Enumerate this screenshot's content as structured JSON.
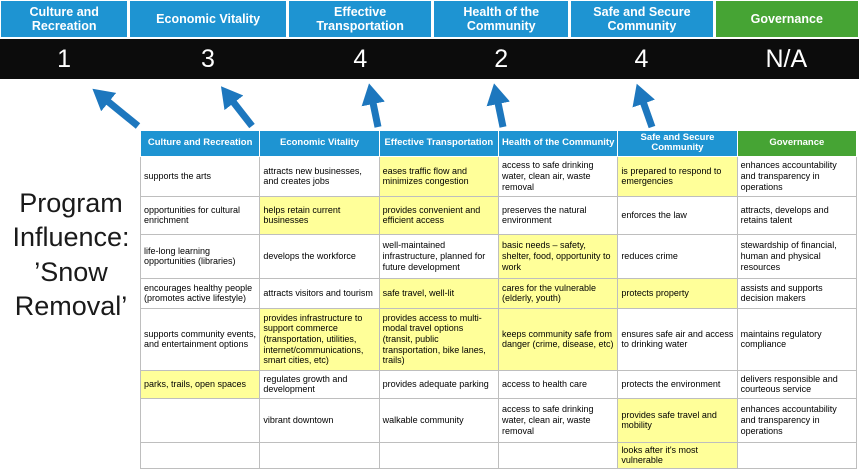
{
  "slide": {
    "title": "Program Influence: ’Snow Removal’"
  },
  "scoreboard": {
    "columns": [
      {
        "label": "Culture and Recreation",
        "score": "1",
        "theme": "blue"
      },
      {
        "label": "Economic Vitality",
        "score": "3",
        "theme": "blue"
      },
      {
        "label": "Effective Transportation",
        "score": "4",
        "theme": "blue"
      },
      {
        "label": "Health of the Community",
        "score": "2",
        "theme": "blue"
      },
      {
        "label": "Safe and Secure Community",
        "score": "4",
        "theme": "blue"
      },
      {
        "label": "Governance",
        "score": "N/A",
        "theme": "green"
      }
    ]
  },
  "table": {
    "headers": [
      {
        "label": "Culture and Recreation",
        "theme": "blue"
      },
      {
        "label": "Economic Vitality",
        "theme": "blue"
      },
      {
        "label": "Effective Transportation",
        "theme": "blue"
      },
      {
        "label": "Health of the Community",
        "theme": "blue"
      },
      {
        "label": "Safe and Secure Community",
        "theme": "blue"
      },
      {
        "label": "Governance",
        "theme": "green"
      }
    ],
    "rows": [
      [
        {
          "text": "supports the arts",
          "hl": false
        },
        {
          "text": "attracts new businesses, and creates jobs",
          "hl": false
        },
        {
          "text": "eases traffic flow and minimizes congestion",
          "hl": true
        },
        {
          "text": "access to safe drinking water, clean air, waste removal",
          "hl": false
        },
        {
          "text": "is prepared to respond to emergencies",
          "hl": true
        },
        {
          "text": "enhances accountability and transparency in operations",
          "hl": false
        }
      ],
      [
        {
          "text": "opportunities for cultural enrichment",
          "hl": false
        },
        {
          "text": "helps retain current businesses",
          "hl": true
        },
        {
          "text": "provides convenient and efficient access",
          "hl": true
        },
        {
          "text": "preserves the natural environment",
          "hl": false
        },
        {
          "text": "enforces the law",
          "hl": false
        },
        {
          "text": "attracts, develops and retains talent",
          "hl": false
        }
      ],
      [
        {
          "text": "life-long learning opportunities (libraries)",
          "hl": false
        },
        {
          "text": "develops the workforce",
          "hl": false
        },
        {
          "text": "well-maintained infrastructure, planned for future development",
          "hl": false
        },
        {
          "text": "basic needs – safety, shelter, food, opportunity to work",
          "hl": true
        },
        {
          "text": "reduces crime",
          "hl": false
        },
        {
          "text": "stewardship of financial, human and physical resources",
          "hl": false
        }
      ],
      [
        {
          "text": "encourages healthy people (promotes active lifestyle)",
          "hl": false
        },
        {
          "text": "attracts visitors and tourism",
          "hl": false
        },
        {
          "text": "safe travel, well-lit",
          "hl": true
        },
        {
          "text": "cares for the vulnerable (elderly, youth)",
          "hl": true
        },
        {
          "text": "protects property",
          "hl": true
        },
        {
          "text": "assists and supports decision makers",
          "hl": false
        }
      ],
      [
        {
          "text": "supports community events, and entertainment options",
          "hl": false
        },
        {
          "text": "provides infrastructure to support commerce (transportation, utilities, internet/communications, smart cities, etc)",
          "hl": true
        },
        {
          "text": "provides access to multi-modal travel options (transit, public transportation, bike lanes, trails)",
          "hl": true
        },
        {
          "text": "keeps community safe from danger (crime, disease, etc)",
          "hl": true
        },
        {
          "text": "ensures safe air and access to drinking water",
          "hl": false
        },
        {
          "text": "maintains regulatory compliance",
          "hl": false
        }
      ],
      [
        {
          "text": "parks, trails, open spaces",
          "hl": true
        },
        {
          "text": "regulates growth and development",
          "hl": false
        },
        {
          "text": "provides adequate parking",
          "hl": false
        },
        {
          "text": "access to health care",
          "hl": false
        },
        {
          "text": "protects the environment",
          "hl": false
        },
        {
          "text": "delivers responsible and courteous service",
          "hl": false
        }
      ],
      [
        {
          "text": "",
          "hl": false
        },
        {
          "text": "vibrant downtown",
          "hl": false
        },
        {
          "text": "walkable community",
          "hl": false
        },
        {
          "text": "access to safe drinking water, clean air, waste removal",
          "hl": false
        },
        {
          "text": "provides safe travel and mobility",
          "hl": true
        },
        {
          "text": "enhances accountability and transparency in operations",
          "hl": false
        }
      ],
      [
        {
          "text": "",
          "hl": false
        },
        {
          "text": "",
          "hl": false
        },
        {
          "text": "",
          "hl": false
        },
        {
          "text": "",
          "hl": false
        },
        {
          "text": "looks after it's most vulnerable",
          "hl": true
        },
        {
          "text": "",
          "hl": false
        }
      ]
    ]
  },
  "colors": {
    "header_blue": "#1E94D2",
    "header_green": "#46A434",
    "score_band": "#0C0C0C",
    "highlight_yellow": "#FFFF99",
    "arrow_blue": "#1D77BE",
    "cell_border": "#BEBEBE",
    "title_text": "#1A1A1A"
  }
}
